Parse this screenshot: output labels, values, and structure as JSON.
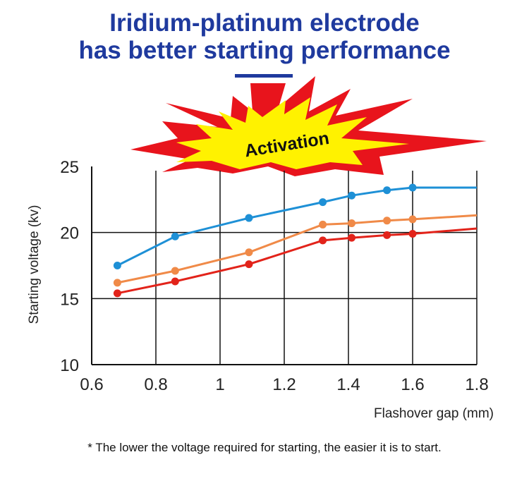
{
  "headline": {
    "line1": "Iridium-platinum electrode",
    "line2": "has better starting performance"
  },
  "badge_text": "Activation",
  "footnote": "* The lower the voltage required for starting, the easier it is to start.",
  "colors": {
    "title": "#1f3a9e",
    "burst_outer": "#e8141c",
    "burst_inner": "#fff200",
    "series_blue": "#1e90d6",
    "series_orange": "#f08a48",
    "series_red": "#e2231a"
  },
  "chart_data": {
    "type": "line",
    "title": "",
    "xlabel": "Flashover gap (mm)",
    "ylabel": "Starting voltage (kv)",
    "xlim": [
      0.6,
      1.8
    ],
    "ylim": [
      10,
      25
    ],
    "x_ticks": [
      "0.6",
      "0.8",
      "1",
      "1.2",
      "1.4",
      "1.6",
      "1.8"
    ],
    "y_ticks": [
      "10",
      "15",
      "20",
      "25"
    ],
    "grid": true,
    "series": [
      {
        "color": "#1e90d6",
        "points": [
          [
            0.68,
            17.5
          ],
          [
            0.86,
            19.7
          ],
          [
            1.09,
            21.1
          ],
          [
            1.32,
            22.3
          ],
          [
            1.41,
            22.8
          ],
          [
            1.52,
            23.2
          ],
          [
            1.6,
            23.4
          ]
        ],
        "end": [
          1.8,
          23.4
        ]
      },
      {
        "color": "#f08a48",
        "points": [
          [
            0.68,
            16.2
          ],
          [
            0.86,
            17.1
          ],
          [
            1.09,
            18.5
          ],
          [
            1.32,
            20.6
          ],
          [
            1.41,
            20.7
          ],
          [
            1.52,
            20.9
          ],
          [
            1.6,
            21.0
          ]
        ],
        "end": [
          1.8,
          21.3
        ]
      },
      {
        "color": "#e2231a",
        "points": [
          [
            0.68,
            15.4
          ],
          [
            0.86,
            16.3
          ],
          [
            1.09,
            17.6
          ],
          [
            1.32,
            19.4
          ],
          [
            1.41,
            19.6
          ],
          [
            1.52,
            19.8
          ],
          [
            1.6,
            19.9
          ]
        ],
        "end": [
          1.8,
          20.3
        ]
      }
    ]
  }
}
